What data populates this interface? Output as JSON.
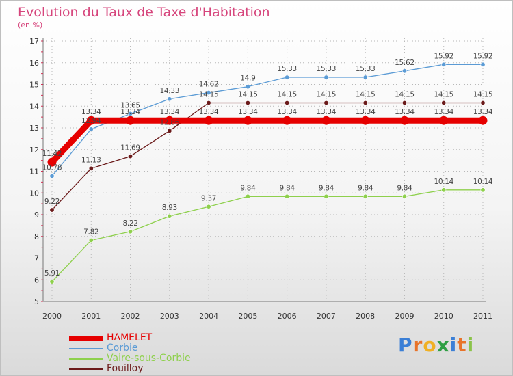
{
  "title": "Evolution du Taux de Taxe d'Habitation",
  "unit_label": "(en %)",
  "logo_text": "Proxiti",
  "colors": {
    "title": "#d6457c",
    "hamelet": "#e60000",
    "corbie": "#5b9bd5",
    "vaire": "#8ed04c",
    "fouilloy": "#6b1a1a",
    "axis": "#777777",
    "grid": "#b8b8b8"
  },
  "chart_data": {
    "type": "line",
    "x": [
      "2000",
      "2001",
      "2002",
      "2003",
      "2004",
      "2005",
      "2006",
      "2007",
      "2008",
      "2009",
      "2010",
      "2011"
    ],
    "ylim": [
      5,
      17
    ],
    "yticks": [
      "5",
      "6",
      "7",
      "8",
      "9",
      "10",
      "11",
      "12",
      "13",
      "14",
      "15",
      "16",
      "17"
    ],
    "grid": true,
    "legend_position": "bottom-left",
    "series": [
      {
        "name": "HAMELET",
        "color": "#e60000",
        "values": [
          11.42,
          13.34,
          13.34,
          13.34,
          13.34,
          13.34,
          13.34,
          13.34,
          13.34,
          13.34,
          13.34,
          13.34
        ],
        "labels": [
          "11.42",
          "13.34",
          "13.34",
          "13.34",
          "13.34",
          "13.34",
          "13.34",
          "13.34",
          "13.34",
          "13.34",
          "13.34",
          "13.34"
        ]
      },
      {
        "name": "Corbie",
        "color": "#5b9bd5",
        "values": [
          10.78,
          12.94,
          13.65,
          14.33,
          14.62,
          14.9,
          15.33,
          15.33,
          15.33,
          15.62,
          15.92,
          15.92
        ],
        "labels": [
          "10.78",
          "12.94",
          "13.65",
          "14.33",
          "14.62",
          "14.9",
          "15.33",
          "15.33",
          "15.33",
          "15.62",
          "15.92",
          "15.92"
        ]
      },
      {
        "name": "Vaire-sous-Corbie",
        "color": "#8ed04c",
        "values": [
          5.91,
          7.82,
          8.22,
          8.93,
          9.37,
          9.84,
          9.84,
          9.84,
          9.84,
          9.84,
          10.14,
          10.14
        ],
        "labels": [
          "5.91",
          "7.82",
          "8.22",
          "8.93",
          "9.37",
          "9.84",
          "9.84",
          "9.84",
          "9.84",
          "9.84",
          "10.14",
          "10.14"
        ]
      },
      {
        "name": "Fouilloy",
        "color": "#6b1a1a",
        "values": [
          9.22,
          11.13,
          11.69,
          12.86,
          14.15,
          14.15,
          14.15,
          14.15,
          14.15,
          14.15,
          14.15,
          14.15
        ],
        "labels": [
          "9.22",
          "11.13",
          "11.69",
          "12.86",
          "14.15",
          "14.15",
          "14.15",
          "14.15",
          "14.15",
          "14.15",
          "14.15",
          "14.15"
        ]
      }
    ]
  }
}
